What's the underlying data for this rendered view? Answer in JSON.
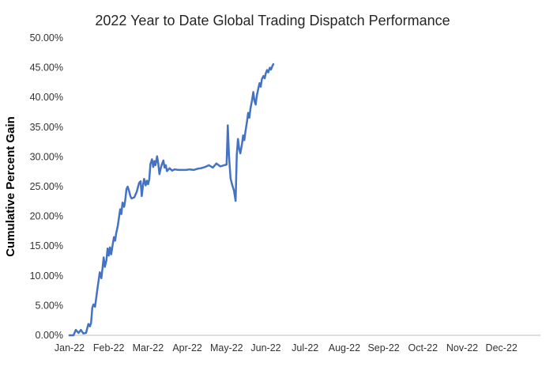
{
  "chart": {
    "title": "2022 Year to Date Global Trading Dispatch Performance",
    "ylabel": "Cumulative Percent Gain"
  },
  "chart_data": {
    "type": "line",
    "title": "2022 Year to Date Global Trading Dispatch Performance",
    "xlabel": "",
    "ylabel": "Cumulative Percent Gain",
    "categories": [
      "Jan-22",
      "Feb-22",
      "Mar-22",
      "Apr-22",
      "May-22",
      "Jun-22",
      "Jul-22",
      "Aug-22",
      "Sep-22",
      "Oct-22",
      "Nov-22",
      "Dec-22"
    ],
    "ylim": [
      0,
      50
    ],
    "y_tick_step": 5,
    "y_tick_suffix": "%",
    "y_tick_decimals": 2,
    "grid": false,
    "legend": "none",
    "line_color": "#4472C4",
    "axis_color": "#BFBFBF",
    "line_width": 2.5,
    "series": [
      {
        "name": "Cumulative Percent Gain",
        "points": [
          [
            0.0,
            0.0
          ],
          [
            0.1,
            0.0
          ],
          [
            0.16,
            0.9
          ],
          [
            0.23,
            0.4
          ],
          [
            0.29,
            0.9
          ],
          [
            0.35,
            0.3
          ],
          [
            0.42,
            0.4
          ],
          [
            0.48,
            1.9
          ],
          [
            0.52,
            1.5
          ],
          [
            0.55,
            2.1
          ],
          [
            0.58,
            4.6
          ],
          [
            0.61,
            5.2
          ],
          [
            0.65,
            4.8
          ],
          [
            0.68,
            6.3
          ],
          [
            0.71,
            7.8
          ],
          [
            0.74,
            9.2
          ],
          [
            0.77,
            10.6
          ],
          [
            0.81,
            9.6
          ],
          [
            0.84,
            11.2
          ],
          [
            0.87,
            13.1
          ],
          [
            0.9,
            11.5
          ],
          [
            0.94,
            12.6
          ],
          [
            0.97,
            14.6
          ],
          [
            1.0,
            13.4
          ],
          [
            1.03,
            14.8
          ],
          [
            1.06,
            13.6
          ],
          [
            1.1,
            15.3
          ],
          [
            1.13,
            16.5
          ],
          [
            1.16,
            15.9
          ],
          [
            1.19,
            17.2
          ],
          [
            1.23,
            18.4
          ],
          [
            1.26,
            19.8
          ],
          [
            1.29,
            21.2
          ],
          [
            1.32,
            20.4
          ],
          [
            1.35,
            22.3
          ],
          [
            1.39,
            21.6
          ],
          [
            1.42,
            22.8
          ],
          [
            1.45,
            24.6
          ],
          [
            1.48,
            25.0
          ],
          [
            1.52,
            24.2
          ],
          [
            1.55,
            23.4
          ],
          [
            1.58,
            23.0
          ],
          [
            1.65,
            23.2
          ],
          [
            1.71,
            24.1
          ],
          [
            1.77,
            25.6
          ],
          [
            1.81,
            25.9
          ],
          [
            1.84,
            23.4
          ],
          [
            1.87,
            25.1
          ],
          [
            1.9,
            26.3
          ],
          [
            1.94,
            25.2
          ],
          [
            1.97,
            26.0
          ],
          [
            2.0,
            25.4
          ],
          [
            2.03,
            26.2
          ],
          [
            2.06,
            28.8
          ],
          [
            2.1,
            29.6
          ],
          [
            2.13,
            28.3
          ],
          [
            2.16,
            29.3
          ],
          [
            2.19,
            28.6
          ],
          [
            2.23,
            30.1
          ],
          [
            2.26,
            28.9
          ],
          [
            2.29,
            27.1
          ],
          [
            2.32,
            28.0
          ],
          [
            2.35,
            28.7
          ],
          [
            2.39,
            29.4
          ],
          [
            2.42,
            28.2
          ],
          [
            2.45,
            28.6
          ],
          [
            2.48,
            27.6
          ],
          [
            2.55,
            28.1
          ],
          [
            2.61,
            27.7
          ],
          [
            2.68,
            27.9
          ],
          [
            2.77,
            27.8
          ],
          [
            2.87,
            27.8
          ],
          [
            2.97,
            27.8
          ],
          [
            3.06,
            27.9
          ],
          [
            3.16,
            27.8
          ],
          [
            3.26,
            28.0
          ],
          [
            3.35,
            28.1
          ],
          [
            3.45,
            28.3
          ],
          [
            3.55,
            28.6
          ],
          [
            3.65,
            28.2
          ],
          [
            3.74,
            28.9
          ],
          [
            3.84,
            28.4
          ],
          [
            3.94,
            28.6
          ],
          [
            4.0,
            28.7
          ],
          [
            4.03,
            35.3
          ],
          [
            4.06,
            30.2
          ],
          [
            4.1,
            26.4
          ],
          [
            4.13,
            25.6
          ],
          [
            4.16,
            24.9
          ],
          [
            4.19,
            24.3
          ],
          [
            4.23,
            22.6
          ],
          [
            4.26,
            30.4
          ],
          [
            4.29,
            33.0
          ],
          [
            4.32,
            31.4
          ],
          [
            4.35,
            30.6
          ],
          [
            4.39,
            32.1
          ],
          [
            4.42,
            33.6
          ],
          [
            4.45,
            32.8
          ],
          [
            4.48,
            34.3
          ],
          [
            4.52,
            35.9
          ],
          [
            4.55,
            37.4
          ],
          [
            4.58,
            36.6
          ],
          [
            4.61,
            38.2
          ],
          [
            4.65,
            39.6
          ],
          [
            4.68,
            40.9
          ],
          [
            4.71,
            39.4
          ],
          [
            4.74,
            38.8
          ],
          [
            4.77,
            40.3
          ],
          [
            4.81,
            41.6
          ],
          [
            4.84,
            42.4
          ],
          [
            4.87,
            41.8
          ],
          [
            4.9,
            43.1
          ],
          [
            4.94,
            43.6
          ],
          [
            4.97,
            43.2
          ],
          [
            5.0,
            44.1
          ],
          [
            5.03,
            44.6
          ],
          [
            5.06,
            44.2
          ],
          [
            5.1,
            45.0
          ],
          [
            5.13,
            44.7
          ],
          [
            5.16,
            45.2
          ],
          [
            5.19,
            45.6
          ]
        ]
      }
    ]
  }
}
